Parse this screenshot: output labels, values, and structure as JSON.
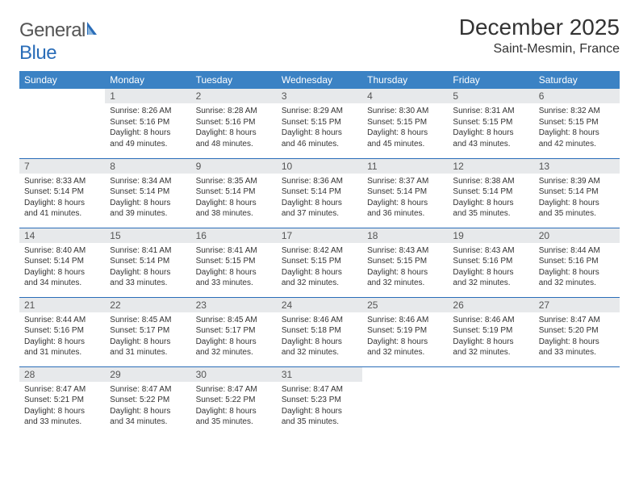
{
  "brand": {
    "part1": "General",
    "part2": "Blue"
  },
  "title": "December 2025",
  "location": "Saint-Mesmin, France",
  "headers": [
    "Sunday",
    "Monday",
    "Tuesday",
    "Wednesday",
    "Thursday",
    "Friday",
    "Saturday"
  ],
  "colors": {
    "header_bg": "#3b82c4",
    "header_text": "#ffffff",
    "daynum_bg": "#e7e9eb",
    "daynum_text": "#555555",
    "rule": "#2a6db8",
    "body_text": "#333333",
    "page_bg": "#ffffff"
  },
  "typography": {
    "title_fontsize": 28,
    "location_fontsize": 16,
    "header_fontsize": 12,
    "daynum_fontsize": 12,
    "cell_fontsize": 10
  },
  "layout": {
    "columns": 7,
    "rows": 5,
    "first_weekday_index": 1
  },
  "days": [
    {
      "n": 1,
      "sunrise": "8:26 AM",
      "sunset": "5:16 PM",
      "daylight": "8 hours and 49 minutes."
    },
    {
      "n": 2,
      "sunrise": "8:28 AM",
      "sunset": "5:16 PM",
      "daylight": "8 hours and 48 minutes."
    },
    {
      "n": 3,
      "sunrise": "8:29 AM",
      "sunset": "5:15 PM",
      "daylight": "8 hours and 46 minutes."
    },
    {
      "n": 4,
      "sunrise": "8:30 AM",
      "sunset": "5:15 PM",
      "daylight": "8 hours and 45 minutes."
    },
    {
      "n": 5,
      "sunrise": "8:31 AM",
      "sunset": "5:15 PM",
      "daylight": "8 hours and 43 minutes."
    },
    {
      "n": 6,
      "sunrise": "8:32 AM",
      "sunset": "5:15 PM",
      "daylight": "8 hours and 42 minutes."
    },
    {
      "n": 7,
      "sunrise": "8:33 AM",
      "sunset": "5:14 PM",
      "daylight": "8 hours and 41 minutes."
    },
    {
      "n": 8,
      "sunrise": "8:34 AM",
      "sunset": "5:14 PM",
      "daylight": "8 hours and 39 minutes."
    },
    {
      "n": 9,
      "sunrise": "8:35 AM",
      "sunset": "5:14 PM",
      "daylight": "8 hours and 38 minutes."
    },
    {
      "n": 10,
      "sunrise": "8:36 AM",
      "sunset": "5:14 PM",
      "daylight": "8 hours and 37 minutes."
    },
    {
      "n": 11,
      "sunrise": "8:37 AM",
      "sunset": "5:14 PM",
      "daylight": "8 hours and 36 minutes."
    },
    {
      "n": 12,
      "sunrise": "8:38 AM",
      "sunset": "5:14 PM",
      "daylight": "8 hours and 35 minutes."
    },
    {
      "n": 13,
      "sunrise": "8:39 AM",
      "sunset": "5:14 PM",
      "daylight": "8 hours and 35 minutes."
    },
    {
      "n": 14,
      "sunrise": "8:40 AM",
      "sunset": "5:14 PM",
      "daylight": "8 hours and 34 minutes."
    },
    {
      "n": 15,
      "sunrise": "8:41 AM",
      "sunset": "5:14 PM",
      "daylight": "8 hours and 33 minutes."
    },
    {
      "n": 16,
      "sunrise": "8:41 AM",
      "sunset": "5:15 PM",
      "daylight": "8 hours and 33 minutes."
    },
    {
      "n": 17,
      "sunrise": "8:42 AM",
      "sunset": "5:15 PM",
      "daylight": "8 hours and 32 minutes."
    },
    {
      "n": 18,
      "sunrise": "8:43 AM",
      "sunset": "5:15 PM",
      "daylight": "8 hours and 32 minutes."
    },
    {
      "n": 19,
      "sunrise": "8:43 AM",
      "sunset": "5:16 PM",
      "daylight": "8 hours and 32 minutes."
    },
    {
      "n": 20,
      "sunrise": "8:44 AM",
      "sunset": "5:16 PM",
      "daylight": "8 hours and 32 minutes."
    },
    {
      "n": 21,
      "sunrise": "8:44 AM",
      "sunset": "5:16 PM",
      "daylight": "8 hours and 31 minutes."
    },
    {
      "n": 22,
      "sunrise": "8:45 AM",
      "sunset": "5:17 PM",
      "daylight": "8 hours and 31 minutes."
    },
    {
      "n": 23,
      "sunrise": "8:45 AM",
      "sunset": "5:17 PM",
      "daylight": "8 hours and 32 minutes."
    },
    {
      "n": 24,
      "sunrise": "8:46 AM",
      "sunset": "5:18 PM",
      "daylight": "8 hours and 32 minutes."
    },
    {
      "n": 25,
      "sunrise": "8:46 AM",
      "sunset": "5:19 PM",
      "daylight": "8 hours and 32 minutes."
    },
    {
      "n": 26,
      "sunrise": "8:46 AM",
      "sunset": "5:19 PM",
      "daylight": "8 hours and 32 minutes."
    },
    {
      "n": 27,
      "sunrise": "8:47 AM",
      "sunset": "5:20 PM",
      "daylight": "8 hours and 33 minutes."
    },
    {
      "n": 28,
      "sunrise": "8:47 AM",
      "sunset": "5:21 PM",
      "daylight": "8 hours and 33 minutes."
    },
    {
      "n": 29,
      "sunrise": "8:47 AM",
      "sunset": "5:22 PM",
      "daylight": "8 hours and 34 minutes."
    },
    {
      "n": 30,
      "sunrise": "8:47 AM",
      "sunset": "5:22 PM",
      "daylight": "8 hours and 35 minutes."
    },
    {
      "n": 31,
      "sunrise": "8:47 AM",
      "sunset": "5:23 PM",
      "daylight": "8 hours and 35 minutes."
    }
  ],
  "labels": {
    "sunrise": "Sunrise:",
    "sunset": "Sunset:",
    "daylight": "Daylight:"
  }
}
